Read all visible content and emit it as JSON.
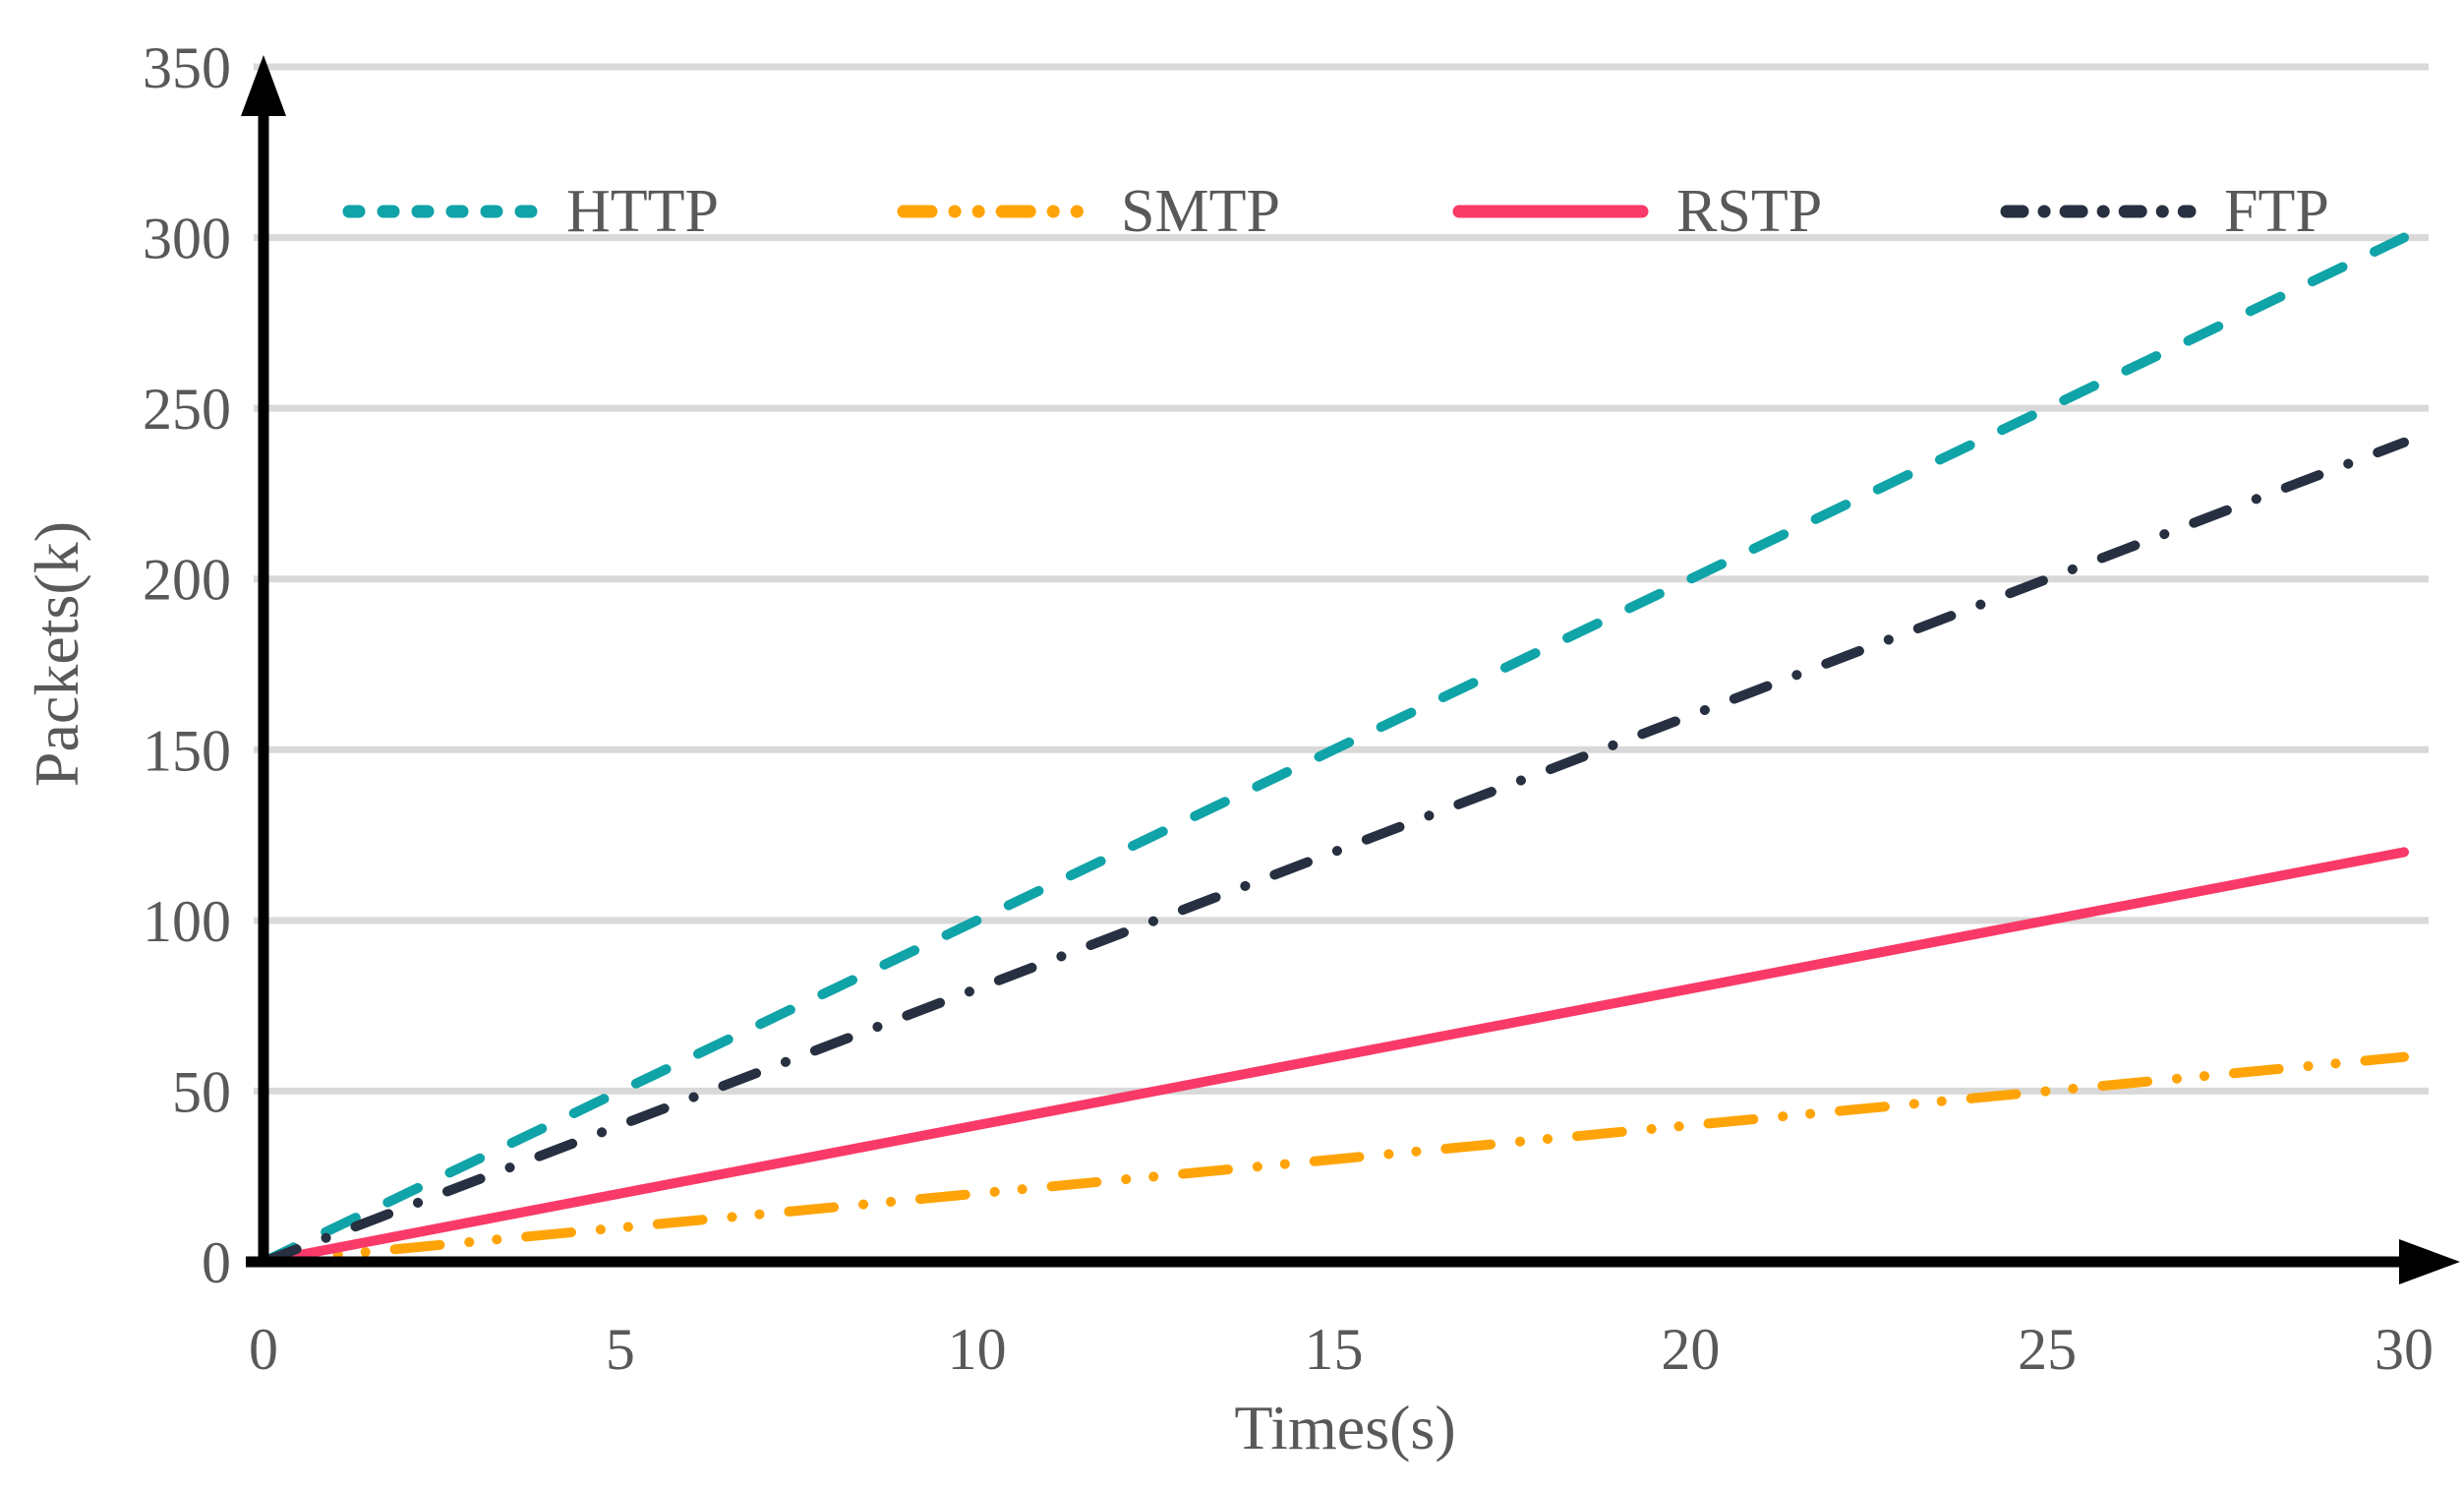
{
  "chart_data": {
    "type": "line",
    "title": "",
    "xlabel": "Times(s)",
    "ylabel": "Packets(k)",
    "xlim": [
      0,
      30
    ],
    "ylim": [
      0,
      350
    ],
    "x_ticks": [
      0,
      5,
      10,
      15,
      20,
      25,
      30
    ],
    "y_ticks": [
      0,
      50,
      100,
      150,
      200,
      250,
      300,
      350
    ],
    "grid": "horizontal gridlines only",
    "legend_position": "top inside, horizontal row",
    "axis_arrows": true,
    "x": [
      0,
      5,
      10,
      15,
      20,
      25,
      30
    ],
    "series": [
      {
        "name": "HTTP",
        "color": "#10a3a8",
        "line_style": "dashed",
        "values": [
          0,
          50,
          100,
          150,
          200,
          250,
          300
        ]
      },
      {
        "name": "SMTP",
        "color": "#ffa408",
        "line_style": "dash-dot-dot",
        "values": [
          0,
          10,
          20,
          30,
          40,
          50,
          60
        ]
      },
      {
        "name": "RSTP",
        "color": "#f93a68",
        "line_style": "solid",
        "values": [
          0,
          20,
          40,
          60,
          80,
          100,
          120
        ]
      },
      {
        "name": "FTP",
        "color": "#273040",
        "line_style": "dash-dot",
        "values": [
          0,
          40,
          80,
          120,
          160,
          200,
          240
        ]
      }
    ],
    "colors": {
      "grid": "#d9d9d9",
      "axis": "#000000",
      "tick_text": "#595959"
    }
  }
}
